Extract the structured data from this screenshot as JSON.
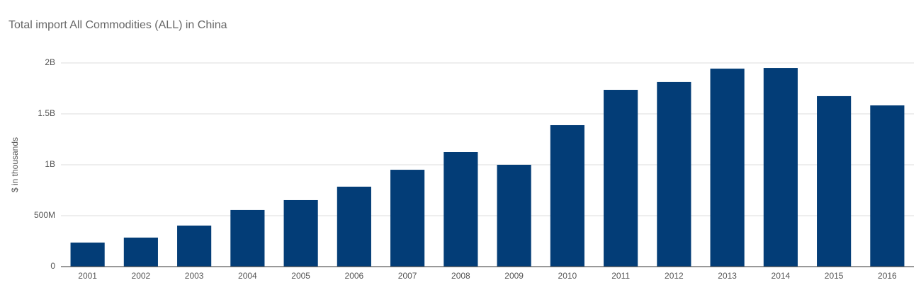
{
  "chart_data": {
    "type": "bar",
    "title": "Total import All Commodities (ALL) in China",
    "y_label": "$ in thousands",
    "categories": [
      "2001",
      "2002",
      "2003",
      "2004",
      "2005",
      "2006",
      "2007",
      "2008",
      "2009",
      "2010",
      "2011",
      "2012",
      "2013",
      "2014",
      "2015",
      "2016"
    ],
    "values": [
      236000000,
      285000000,
      403000000,
      556000000,
      653000000,
      785000000,
      951000000,
      1125000000,
      1000000000,
      1389000000,
      1736000000,
      1813000000,
      1944000000,
      1951000000,
      1674000000,
      1583000000
    ],
    "color": "#033d77",
    "ylim": [
      0,
      2000000000
    ],
    "yticks": [
      0,
      {
        "value": 500000000,
        "label": "500M"
      },
      {
        "value": 1000000000,
        "label": "1B"
      },
      {
        "value": 1500000000,
        "label": "1.5B"
      },
      {
        "value": 2000000000,
        "label": "2B"
      }
    ],
    "grid": true
  }
}
